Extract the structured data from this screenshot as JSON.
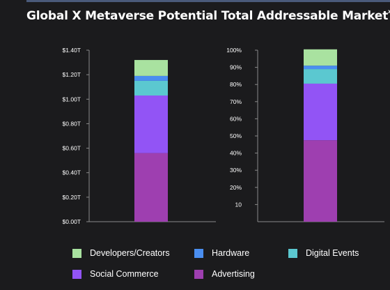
{
  "header": {
    "title": "Global X Metaverse Potential Total Addressable Market",
    "superscript": "xv"
  },
  "colors": {
    "Developers/Creators": "#a9e2a0",
    "Hardware": "#4a8ef0",
    "Digital Events": "#5bc8d0",
    "Social Commerce": "#9254f5",
    "Advertising": "#9e3fb0",
    "axis": "#8a8a8a",
    "background": "#1b1b1d"
  },
  "legend": [
    {
      "label": "Developers/Creators",
      "color": "#a9e2a0"
    },
    {
      "label": "Hardware",
      "color": "#4a8ef0"
    },
    {
      "label": "Digital Events",
      "color": "#5bc8d0"
    },
    {
      "label": "Social Commerce",
      "color": "#9254f5"
    },
    {
      "label": "Advertising",
      "color": "#9e3fb0"
    }
  ],
  "chart_data": [
    {
      "type": "bar",
      "stacked": true,
      "categories": [
        ""
      ],
      "ylim": [
        0,
        1.4
      ],
      "yticks": [
        "$0.00T",
        "$0.20T",
        "$0.40T",
        "$0.60T",
        "$0.80T",
        "$1.00T",
        "$1.20T",
        "$1.40T"
      ],
      "ytick_values": [
        0,
        0.2,
        0.4,
        0.6,
        0.8,
        1.0,
        1.2,
        1.4
      ],
      "series": [
        {
          "name": "Advertising",
          "values": [
            0.56
          ]
        },
        {
          "name": "Social Commerce",
          "values": [
            0.47
          ]
        },
        {
          "name": "Digital Events",
          "values": [
            0.12
          ]
        },
        {
          "name": "Hardware",
          "values": [
            0.04
          ]
        },
        {
          "name": "Developers/Creators",
          "values": [
            0.13
          ]
        }
      ]
    },
    {
      "type": "bar",
      "stacked": true,
      "categories": [
        ""
      ],
      "ylim": [
        0,
        100
      ],
      "yticks": [
        "10",
        "20%",
        "30%",
        "40%",
        "50%",
        "60%",
        "70%",
        "80%",
        "90%",
        "100%"
      ],
      "ytick_values": [
        10,
        20,
        30,
        40,
        50,
        60,
        70,
        80,
        90,
        100
      ],
      "series": [
        {
          "name": "Advertising",
          "values": [
            47.5
          ]
        },
        {
          "name": "Social Commerce",
          "values": [
            33
          ]
        },
        {
          "name": "Digital Events",
          "values": [
            8.5
          ]
        },
        {
          "name": "Hardware",
          "values": [
            2
          ]
        },
        {
          "name": "Developers/Creators",
          "values": [
            9.5
          ]
        }
      ]
    }
  ]
}
